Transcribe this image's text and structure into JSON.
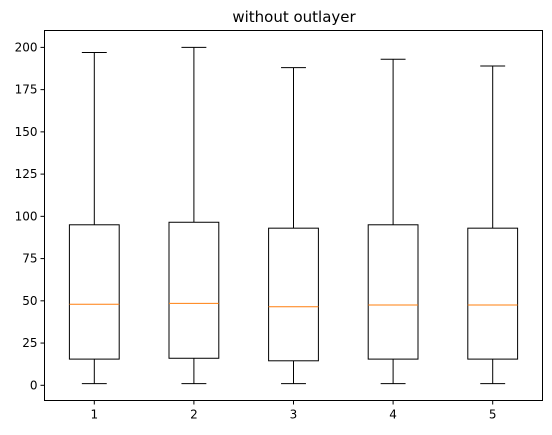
{
  "chart_data": {
    "type": "boxplot",
    "title": "without outlayer",
    "xlabel": "",
    "ylabel": "",
    "categories": [
      "1",
      "2",
      "3",
      "4",
      "5"
    ],
    "boxes": [
      {
        "min": 1,
        "q1": 15.5,
        "median": 48,
        "q3": 95,
        "max": 197
      },
      {
        "min": 1,
        "q1": 16,
        "median": 48.5,
        "q3": 96.5,
        "max": 200
      },
      {
        "min": 1,
        "q1": 14.5,
        "median": 46.5,
        "q3": 93,
        "max": 188
      },
      {
        "min": 1,
        "q1": 15.5,
        "median": 47.5,
        "q3": 95,
        "max": 193
      },
      {
        "min": 1,
        "q1": 15.5,
        "median": 47.5,
        "q3": 93,
        "max": 189
      }
    ],
    "ylim": [
      -9.0,
      210.0
    ],
    "yticks": [
      0,
      25,
      50,
      75,
      100,
      125,
      150,
      175,
      200
    ],
    "grid": false,
    "colors": {
      "box": "#000000",
      "median": "#ff7f0e",
      "background": "#ffffff"
    }
  }
}
